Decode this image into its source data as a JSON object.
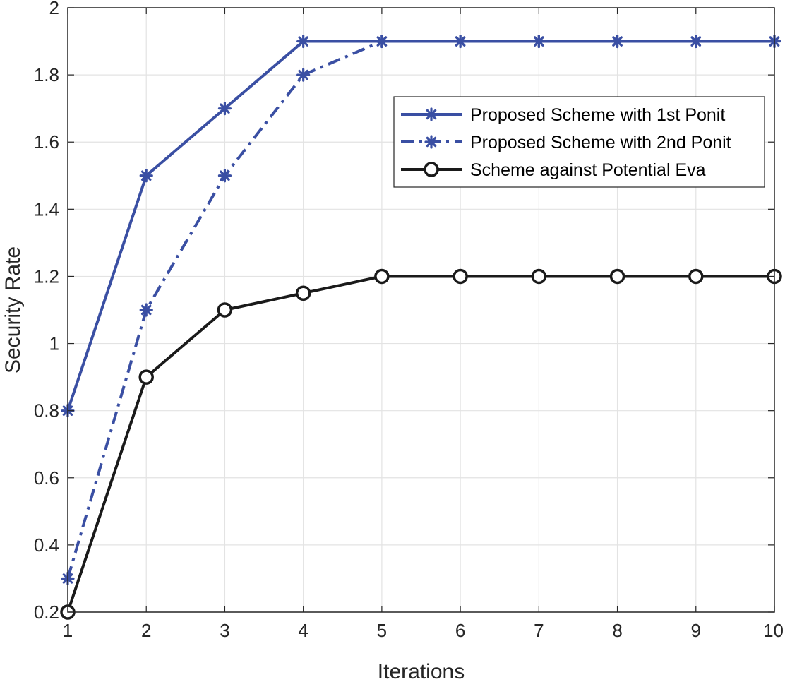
{
  "chart_data": {
    "type": "line",
    "title": "",
    "xlabel": "Iterations",
    "ylabel": "Security Rate",
    "xlim": [
      1,
      10
    ],
    "ylim": [
      0.2,
      2
    ],
    "x_ticks": [
      1,
      2,
      3,
      4,
      5,
      6,
      7,
      8,
      9,
      10
    ],
    "y_ticks": [
      0.2,
      0.4,
      0.6,
      0.8,
      1,
      1.2,
      1.4,
      1.6,
      1.8,
      2
    ],
    "y_tick_labels": [
      "0.2",
      "0.4",
      "0.6",
      "0.8",
      "1",
      "1.2",
      "1.4",
      "1.6",
      "1.8",
      "2"
    ],
    "grid": true,
    "legend_position": "top-right",
    "x": [
      1,
      2,
      3,
      4,
      5,
      6,
      7,
      8,
      9,
      10
    ],
    "series": [
      {
        "name": "Proposed Scheme with 1st Ponit",
        "values": [
          0.8,
          1.5,
          1.7,
          1.9,
          1.9,
          1.9,
          1.9,
          1.9,
          1.9,
          1.9
        ],
        "color": "#3a4fa3",
        "line_style": "solid",
        "marker": "asterisk"
      },
      {
        "name": "Proposed Scheme with 2nd Ponit",
        "values": [
          0.3,
          1.1,
          1.5,
          1.8,
          1.9,
          1.9,
          1.9,
          1.9,
          1.9,
          1.9
        ],
        "color": "#3a4fa3",
        "line_style": "dash-dot",
        "marker": "asterisk"
      },
      {
        "name": "Scheme against Potential Eva",
        "values": [
          0.2,
          0.9,
          1.1,
          1.15,
          1.2,
          1.2,
          1.2,
          1.2,
          1.2,
          1.2
        ],
        "color": "#1a1a1a",
        "line_style": "solid",
        "marker": "circle"
      }
    ]
  }
}
